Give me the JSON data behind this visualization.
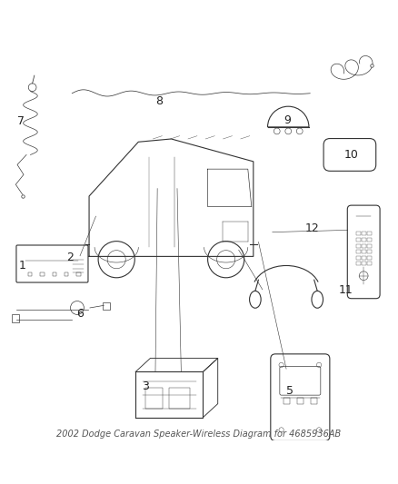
{
  "title": "2002 Dodge Caravan Speaker-Wireless Diagram for 4685936AB",
  "bg_color": "#ffffff",
  "line_color": "#333333",
  "label_color": "#222222",
  "label_fontsize": 9,
  "title_fontsize": 7,
  "fig_width": 4.38,
  "fig_height": 5.33,
  "dpi": 100
}
